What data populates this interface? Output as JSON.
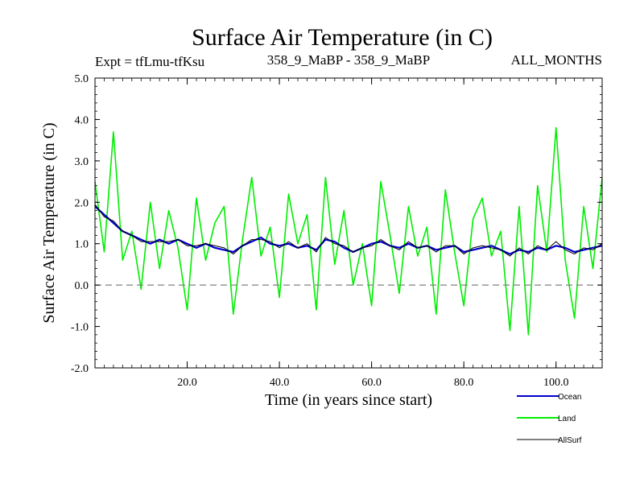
{
  "chart_data": {
    "type": "line",
    "title": "Surface Air Temperature (in C)",
    "subtitle_left": "Expt = tfLmu-tfKsu",
    "subtitle_center": "358_9_MaBP - 358_9_MaBP",
    "subtitle_right": "ALL_MONTHS",
    "xlabel": "Time (in years since start)",
    "ylabel": "Surface Air Temperature (in C)",
    "xlim": [
      0,
      110
    ],
    "ylim": [
      -2.0,
      5.0
    ],
    "x_ticks": [
      20,
      40,
      60,
      80,
      100
    ],
    "x_tick_labels": [
      "20.0",
      "40.0",
      "60.0",
      "80.0",
      "100.0"
    ],
    "y_ticks": [
      -2,
      -1,
      0,
      1,
      2,
      3,
      4,
      5
    ],
    "y_tick_labels": [
      "-2.0",
      "-1.0",
      "0.0",
      "1.0",
      "2.0",
      "3.0",
      "4.0",
      "5.0"
    ],
    "reference_line": {
      "y": 0.0,
      "style": "dashed",
      "color": "#808080"
    },
    "legend_position": "bottom-right",
    "series": [
      {
        "name": "Land",
        "color": "#00ee00",
        "x": [
          0,
          2,
          4,
          6,
          8,
          10,
          12,
          14,
          16,
          18,
          20,
          22,
          24,
          26,
          28,
          30,
          32,
          34,
          36,
          38,
          40,
          42,
          44,
          46,
          48,
          50,
          52,
          54,
          56,
          58,
          60,
          62,
          64,
          66,
          68,
          70,
          72,
          74,
          76,
          78,
          80,
          82,
          84,
          86,
          88,
          90,
          92,
          94,
          96,
          98,
          100,
          102,
          104,
          106,
          108,
          110
        ],
        "values": [
          2.5,
          0.8,
          3.7,
          0.6,
          1.3,
          -0.1,
          2.0,
          0.4,
          1.8,
          0.9,
          -0.6,
          2.1,
          0.6,
          1.5,
          1.9,
          -0.7,
          1.1,
          2.6,
          0.7,
          1.4,
          -0.3,
          2.2,
          1.0,
          1.7,
          -0.6,
          2.6,
          0.5,
          1.8,
          0.0,
          1.0,
          -0.5,
          2.5,
          1.2,
          -0.2,
          1.9,
          0.7,
          1.4,
          -0.7,
          2.3,
          0.8,
          -0.5,
          1.6,
          2.1,
          0.7,
          1.3,
          -1.1,
          1.9,
          -1.2,
          2.4,
          0.8,
          3.8,
          0.6,
          -0.8,
          1.9,
          0.4,
          2.6
        ]
      },
      {
        "name": "Ocean",
        "color": "#0000cc",
        "x": [
          0,
          2,
          4,
          6,
          8,
          10,
          12,
          14,
          16,
          18,
          20,
          22,
          24,
          26,
          28,
          30,
          32,
          34,
          36,
          38,
          40,
          42,
          44,
          46,
          48,
          50,
          52,
          54,
          56,
          58,
          60,
          62,
          64,
          66,
          68,
          70,
          72,
          74,
          76,
          78,
          80,
          82,
          84,
          86,
          88,
          90,
          92,
          94,
          96,
          98,
          100,
          102,
          104,
          106,
          108,
          110
        ],
        "values": [
          1.9,
          1.7,
          1.5,
          1.3,
          1.2,
          1.1,
          1.0,
          1.1,
          1.0,
          1.1,
          1.0,
          0.9,
          1.0,
          0.9,
          0.85,
          0.8,
          0.95,
          1.05,
          1.15,
          1.0,
          0.95,
          1.0,
          0.9,
          0.95,
          0.85,
          1.1,
          1.05,
          0.9,
          0.8,
          0.9,
          1.0,
          1.05,
          0.95,
          0.9,
          1.0,
          0.9,
          0.95,
          0.85,
          0.9,
          0.95,
          0.8,
          0.85,
          0.9,
          0.95,
          0.85,
          0.75,
          0.85,
          0.8,
          0.9,
          0.85,
          0.95,
          0.9,
          0.8,
          0.85,
          0.9,
          0.95
        ]
      },
      {
        "name": "AllSurf",
        "color": "#000000",
        "x": [
          0,
          2,
          4,
          6,
          8,
          10,
          12,
          14,
          16,
          18,
          20,
          22,
          24,
          26,
          28,
          30,
          32,
          34,
          36,
          38,
          40,
          42,
          44,
          46,
          48,
          50,
          52,
          54,
          56,
          58,
          60,
          62,
          64,
          66,
          68,
          70,
          72,
          74,
          76,
          78,
          80,
          82,
          84,
          86,
          88,
          90,
          92,
          94,
          96,
          98,
          100,
          102,
          104,
          106,
          108,
          110
        ],
        "values": [
          1.95,
          1.65,
          1.55,
          1.3,
          1.2,
          1.05,
          1.05,
          1.05,
          1.05,
          1.1,
          0.95,
          0.95,
          1.0,
          0.95,
          0.9,
          0.75,
          0.95,
          1.1,
          1.1,
          1.05,
          0.9,
          1.05,
          0.9,
          1.0,
          0.8,
          1.15,
          1.0,
          0.95,
          0.8,
          0.9,
          0.95,
          1.1,
          0.95,
          0.85,
          1.05,
          0.9,
          0.95,
          0.8,
          0.95,
          0.95,
          0.75,
          0.9,
          0.95,
          0.9,
          0.85,
          0.7,
          0.9,
          0.75,
          0.95,
          0.85,
          1.05,
          0.85,
          0.75,
          0.9,
          0.85,
          1.0
        ]
      }
    ]
  }
}
